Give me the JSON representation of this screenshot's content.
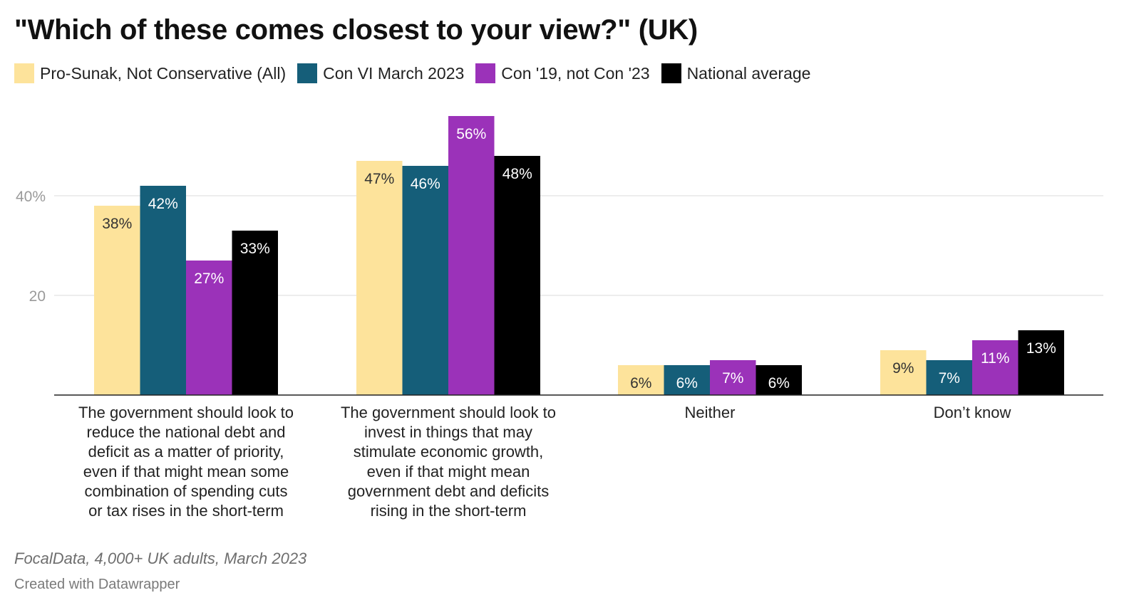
{
  "chart_data": {
    "type": "bar",
    "title": "\"Which of these comes closest to your view?\" (UK)",
    "categories": [
      [
        "The government should look to",
        "reduce the national debt and",
        "deficit as a matter of priority,",
        "even if that might mean some",
        "combination of spending cuts",
        "or tax rises in the short-term"
      ],
      [
        "The government should look to",
        "invest in things that may",
        "stimulate economic growth,",
        "even if that might mean",
        "government debt and deficits",
        "rising in the short-term"
      ],
      [
        "Neither"
      ],
      [
        "Don’t know"
      ]
    ],
    "series": [
      {
        "name": "Pro-Sunak, Not Conservative (All)",
        "color": "#fde39b",
        "label_color": "#333333",
        "values": [
          38,
          47,
          6,
          9
        ],
        "labels": [
          "38%",
          "47%",
          "6%",
          "9%"
        ]
      },
      {
        "name": "Con VI March 2023",
        "color": "#155e79",
        "label_color": "#ffffff",
        "values": [
          42,
          46,
          6,
          7
        ],
        "labels": [
          "42%",
          "46%",
          "6%",
          "7%"
        ]
      },
      {
        "name": "Con '19, not Con '23",
        "color": "#9b32b9",
        "label_color": "#ffffff",
        "values": [
          27,
          56,
          7,
          11
        ],
        "labels": [
          "27%",
          "56%",
          "7%",
          "11%"
        ]
      },
      {
        "name": "National average",
        "color": "#000000",
        "label_color": "#ffffff",
        "values": [
          33,
          48,
          6,
          13
        ],
        "labels": [
          "33%",
          "48%",
          "6%",
          "13%"
        ]
      }
    ],
    "y_ticks": [
      {
        "value": 20,
        "label": "20"
      },
      {
        "value": 40,
        "label": "40%"
      }
    ],
    "ylim": [
      0,
      57
    ],
    "grid": true,
    "legend_position": "top-left"
  },
  "footer": {
    "source": "FocalData, 4,000+ UK adults, March 2023",
    "credit": "Created with Datawrapper"
  }
}
